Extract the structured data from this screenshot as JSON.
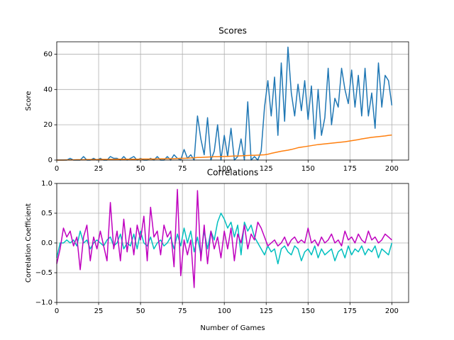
{
  "chart_data": [
    {
      "type": "line",
      "title": "Scores",
      "ylabel": "Score",
      "grid": true,
      "xlim": [
        0,
        210
      ],
      "ylim": [
        0,
        67
      ],
      "xticks": [
        0,
        25,
        50,
        75,
        100,
        125,
        150,
        175,
        200
      ],
      "yticks": [
        0,
        20,
        40,
        60
      ],
      "x": [
        0,
        2,
        4,
        6,
        8,
        10,
        12,
        14,
        16,
        18,
        20,
        22,
        24,
        26,
        28,
        30,
        32,
        34,
        36,
        38,
        40,
        42,
        44,
        46,
        48,
        50,
        52,
        54,
        56,
        58,
        60,
        62,
        64,
        66,
        68,
        70,
        72,
        74,
        76,
        78,
        80,
        82,
        84,
        86,
        88,
        90,
        92,
        94,
        96,
        98,
        100,
        102,
        104,
        106,
        108,
        110,
        112,
        114,
        116,
        118,
        120,
        122,
        124,
        126,
        128,
        130,
        132,
        134,
        136,
        138,
        140,
        142,
        144,
        146,
        148,
        150,
        152,
        154,
        156,
        158,
        160,
        162,
        164,
        166,
        168,
        170,
        172,
        174,
        176,
        178,
        180,
        182,
        184,
        186,
        188,
        190,
        192,
        194,
        196,
        198,
        200
      ],
      "series": [
        {
          "color": "#1f77b4",
          "values": [
            0,
            0,
            0,
            0,
            1,
            0,
            0,
            0,
            2,
            0,
            0,
            1,
            0,
            1,
            0,
            0,
            2,
            1,
            1,
            0,
            2,
            0,
            1,
            2,
            0,
            1,
            0,
            0,
            1,
            0,
            2,
            0,
            0,
            2,
            0,
            3,
            1,
            0,
            6,
            1,
            3,
            0,
            25,
            12,
            3,
            24,
            0,
            5,
            20,
            0,
            14,
            2,
            18,
            0,
            2,
            12,
            0,
            33,
            0,
            2,
            0,
            5,
            30,
            45,
            25,
            47,
            14,
            55,
            22,
            64,
            38,
            25,
            43,
            28,
            45,
            23,
            42,
            12,
            40,
            14,
            24,
            52,
            20,
            35,
            30,
            52,
            40,
            32,
            51,
            30,
            48,
            25,
            52,
            25,
            38,
            18,
            55,
            30,
            48,
            45,
            31
          ]
        },
        {
          "color": "#ff7f0e",
          "values": [
            0,
            0,
            0,
            0.1,
            0.1,
            0.1,
            0.2,
            0.2,
            0.2,
            0.3,
            0.3,
            0.3,
            0.3,
            0.4,
            0.4,
            0.4,
            0.4,
            0.4,
            0.5,
            0.5,
            0.5,
            0.5,
            0.5,
            0.5,
            0.5,
            0.6,
            0.6,
            0.6,
            0.6,
            0.6,
            0.7,
            0.7,
            0.7,
            0.8,
            0.8,
            0.8,
            0.9,
            1.0,
            1.0,
            1.1,
            1.2,
            1.3,
            1.5,
            1.5,
            1.6,
            1.7,
            1.8,
            1.9,
            1.9,
            2.0,
            2.0,
            2.1,
            2.2,
            2.3,
            2.3,
            2.4,
            2.5,
            2.6,
            2.7,
            2.7,
            2.8,
            2.9,
            3.0,
            3.3,
            3.8,
            4.2,
            4.6,
            5.0,
            5.3,
            5.6,
            6.0,
            6.5,
            7.0,
            7.3,
            7.6,
            7.9,
            8.2,
            8.5,
            8.8,
            9.0,
            9.2,
            9.4,
            9.6,
            9.8,
            10.0,
            10.2,
            10.4,
            10.7,
            11.0,
            11.3,
            11.6,
            12.0,
            12.3,
            12.6,
            12.9,
            13.1,
            13.3,
            13.5,
            13.7,
            14.0,
            14.2
          ]
        }
      ]
    },
    {
      "type": "line",
      "title": "Correlations",
      "xlabel": "Number of Games",
      "ylabel": "Correlation Coefficient",
      "grid": true,
      "xlim": [
        0,
        210
      ],
      "ylim": [
        -1,
        1
      ],
      "xticks": [
        0,
        25,
        50,
        75,
        100,
        125,
        150,
        175,
        200
      ],
      "yticks": [
        {
          "value": -1,
          "label": "−1.0"
        },
        {
          "value": -0.5,
          "label": "−0.5"
        },
        {
          "value": 0,
          "label": "0.0"
        },
        0.5,
        {
          "value": 1,
          "label": "1.0"
        }
      ],
      "x": [
        0,
        2,
        4,
        6,
        8,
        10,
        12,
        14,
        16,
        18,
        20,
        22,
        24,
        26,
        28,
        30,
        32,
        34,
        36,
        38,
        40,
        42,
        44,
        46,
        48,
        50,
        52,
        54,
        56,
        58,
        60,
        62,
        64,
        66,
        68,
        70,
        72,
        74,
        76,
        78,
        80,
        82,
        84,
        86,
        88,
        90,
        92,
        94,
        96,
        98,
        100,
        102,
        104,
        106,
        108,
        110,
        112,
        114,
        116,
        118,
        120,
        122,
        124,
        126,
        128,
        130,
        132,
        134,
        136,
        138,
        140,
        142,
        144,
        146,
        148,
        150,
        152,
        154,
        156,
        158,
        160,
        162,
        164,
        166,
        168,
        170,
        172,
        174,
        176,
        178,
        180,
        182,
        184,
        186,
        188,
        190,
        192,
        194,
        196,
        198,
        200
      ],
      "series": [
        {
          "color": "#00bfbf",
          "values": [
            -0.25,
            0.0,
            0.0,
            0.05,
            0.0,
            0.05,
            -0.05,
            0.2,
            0.0,
            0.05,
            -0.1,
            0.0,
            0.05,
            0.0,
            -0.05,
            0.05,
            0.1,
            -0.05,
            0.0,
            0.15,
            -0.1,
            0.0,
            -0.05,
            0.15,
            -0.1,
            0.2,
            0.0,
            -0.05,
            0.1,
            -0.1,
            0.0,
            0.05,
            -0.05,
            0.0,
            0.1,
            -0.1,
            0.15,
            -0.05,
            0.25,
            0.0,
            0.2,
            -0.15,
            0.1,
            -0.2,
            0.2,
            -0.1,
            0.2,
            0.05,
            0.35,
            0.5,
            0.4,
            0.25,
            0.35,
            0.1,
            0.3,
            -0.2,
            0.35,
            0.2,
            0.3,
            0.1,
            0.0,
            -0.1,
            -0.2,
            -0.05,
            -0.15,
            -0.1,
            -0.35,
            -0.1,
            -0.05,
            -0.15,
            -0.2,
            -0.05,
            -0.1,
            -0.3,
            -0.15,
            -0.1,
            -0.2,
            -0.05,
            -0.25,
            -0.1,
            -0.2,
            -0.15,
            -0.1,
            -0.3,
            -0.15,
            -0.1,
            -0.25,
            -0.05,
            -0.2,
            -0.1,
            -0.15,
            -0.05,
            -0.2,
            -0.1,
            -0.15,
            -0.05,
            -0.25,
            -0.1,
            -0.15,
            -0.2,
            0.0
          ]
        },
        {
          "color": "#bf00bf",
          "values": [
            -0.35,
            -0.1,
            0.25,
            0.1,
            0.2,
            -0.05,
            0.1,
            -0.45,
            0.1,
            0.3,
            -0.3,
            0.1,
            -0.1,
            0.2,
            -0.05,
            -0.3,
            0.68,
            -0.1,
            0.2,
            -0.3,
            0.4,
            -0.15,
            0.25,
            -0.2,
            0.3,
            0.05,
            0.45,
            -0.3,
            0.6,
            0.1,
            0.2,
            -0.2,
            0.3,
            0.1,
            0.2,
            -0.4,
            0.9,
            -0.55,
            0.05,
            -0.2,
            0.05,
            -0.75,
            0.88,
            -0.3,
            0.3,
            -0.35,
            0.2,
            -0.1,
            0.1,
            -0.25,
            0.2,
            -0.1,
            0.25,
            -0.3,
            0.15,
            0.0,
            0.3,
            -0.1,
            0.15,
            0.05,
            0.35,
            0.25,
            0.1,
            -0.05,
            0.0,
            0.05,
            -0.05,
            0.0,
            0.1,
            -0.05,
            0.05,
            0.1,
            0.0,
            0.05,
            0.0,
            0.25,
            0.0,
            0.05,
            -0.05,
            0.1,
            0.0,
            0.05,
            0.15,
            0.0,
            0.05,
            -0.05,
            0.2,
            0.05,
            0.1,
            0.0,
            0.15,
            0.05,
            0.0,
            0.2,
            0.05,
            0.1,
            0.0,
            0.05,
            0.15,
            0.1,
            0.05
          ]
        }
      ]
    }
  ]
}
